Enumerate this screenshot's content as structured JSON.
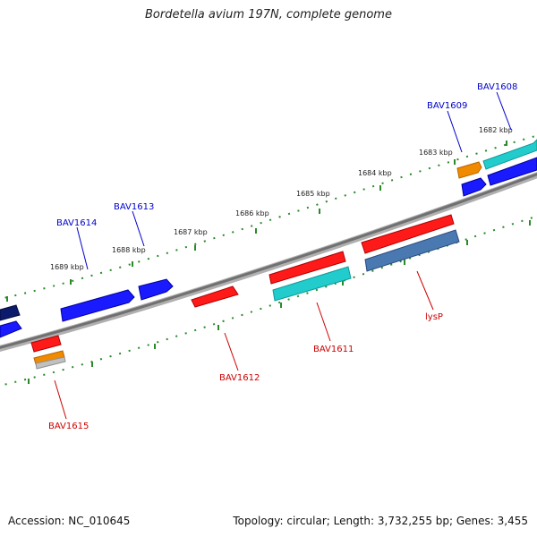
{
  "title": "Bordetella avium 197N, complete genome",
  "footer": {
    "accession": "Accession: NC_010645",
    "summary": "Topology: circular; Length: 3,732,255 bp; Genes: 3,455"
  },
  "colors": {
    "backbone": "#8a8a8a",
    "ruler": "#2a8a2a",
    "label_forward": "#0000cc",
    "label_reverse": "#cc0000"
  },
  "ticks": [
    "1682 kbp",
    "1683 kbp",
    "1684 kbp",
    "1685 kbp",
    "1686 kbp",
    "1687 kbp",
    "1688 kbp",
    "1689 kbp"
  ],
  "gene_labels": {
    "forward": [
      "BAV1608",
      "BAV1609",
      "BAV1613",
      "BAV1614"
    ],
    "reverse": [
      "lysP",
      "BAV1611",
      "BAV1612",
      "BAV1615"
    ]
  },
  "feature_colors": {
    "navy": "#0b1a6b",
    "blue": "#1a1aff",
    "red": "#ff1a1a",
    "teal": "#22cccc",
    "orange": "#f08a00",
    "steel": "#4a78b0",
    "gray": "#c0c0c0"
  }
}
